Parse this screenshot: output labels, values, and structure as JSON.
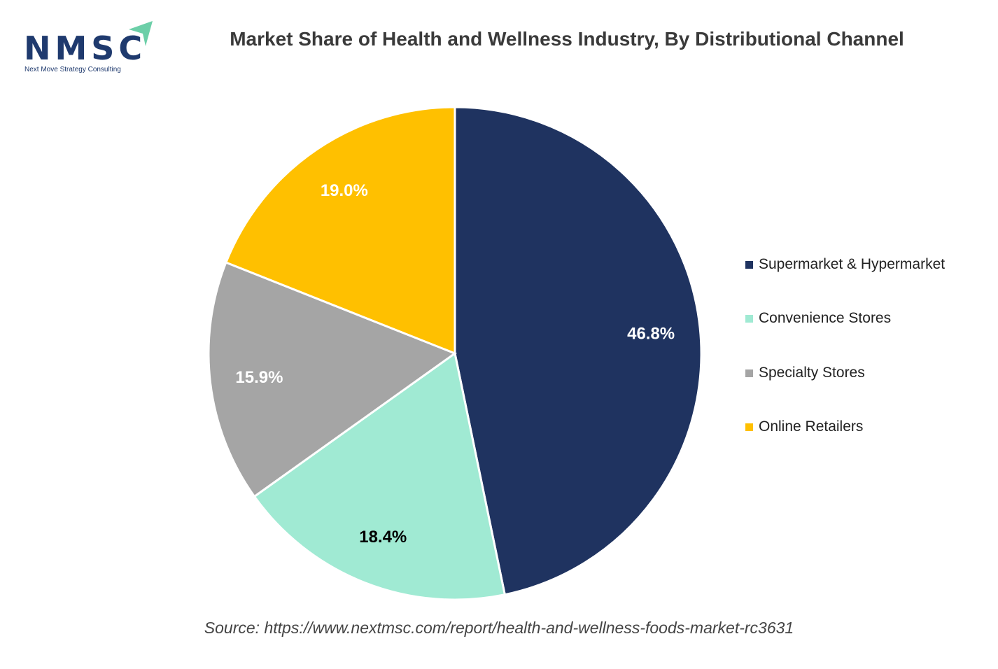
{
  "logo": {
    "text": "NMSC",
    "subtitle": "Next Move Strategy Consulting"
  },
  "chart_data": {
    "type": "pie",
    "title": "Market Share of Health and Wellness Industry, By Distributional Channel",
    "categories": [
      "Supermarket & Hypermarket",
      "Convenience Stores",
      "Specialty Stores",
      "Online Retailers"
    ],
    "values": [
      46.8,
      18.4,
      15.9,
      19.0
    ],
    "labels": [
      "46.8%",
      "18.4%",
      "15.9%",
      "19.0%"
    ],
    "colors": [
      "#1F3360",
      "#A0EAD3",
      "#A5A5A5",
      "#FFC000"
    ],
    "label_colors": [
      "#ffffff",
      "#000000",
      "#ffffff",
      "#ffffff"
    ],
    "start": "top, clockwise",
    "legend_position": "right"
  },
  "source": "Source: https://www.nextmsc.com/report/health-and-wellness-foods-market-rc3631"
}
